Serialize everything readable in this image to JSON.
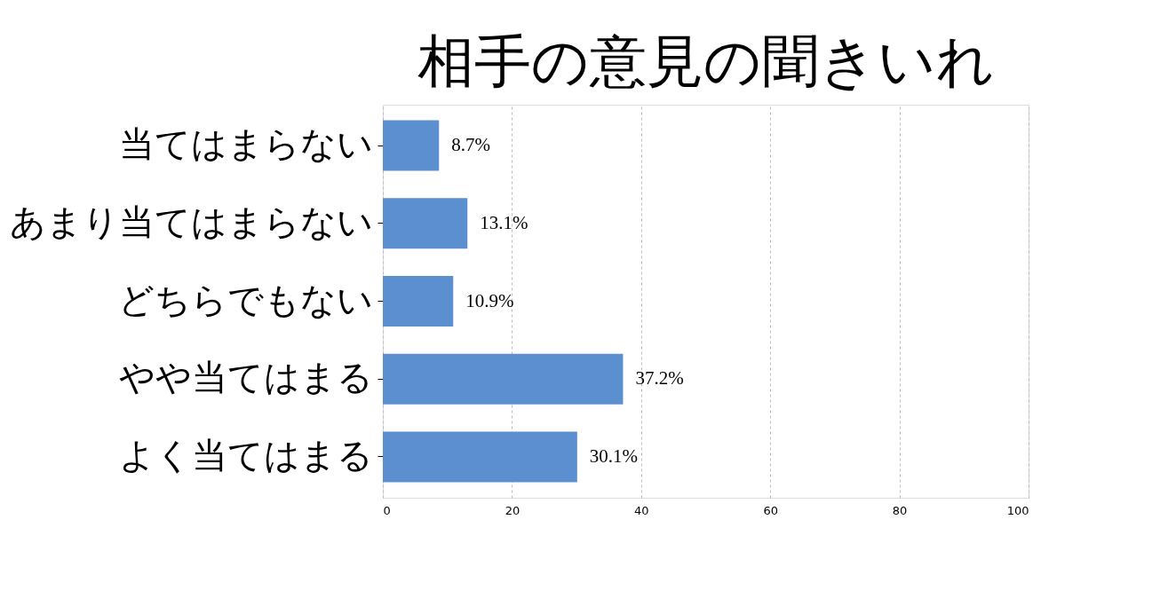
{
  "chart_data": {
    "type": "bar",
    "orientation": "horizontal",
    "title": "相手の意見の聞きいれ",
    "categories": [
      "当てはまらない",
      "あまり当てはまらない",
      "どちらでもない",
      "やや当てはまる",
      "よく当てはまる"
    ],
    "values": [
      8.7,
      13.1,
      10.9,
      37.2,
      30.1
    ],
    "value_labels": [
      "8.7%",
      "13.1%",
      "10.9%",
      "37.2%",
      "30.1%"
    ],
    "color": "#5b8fd0",
    "xlim": [
      0,
      100
    ],
    "xticks": [
      0,
      20,
      40,
      60,
      80,
      100
    ],
    "grid": "x"
  }
}
